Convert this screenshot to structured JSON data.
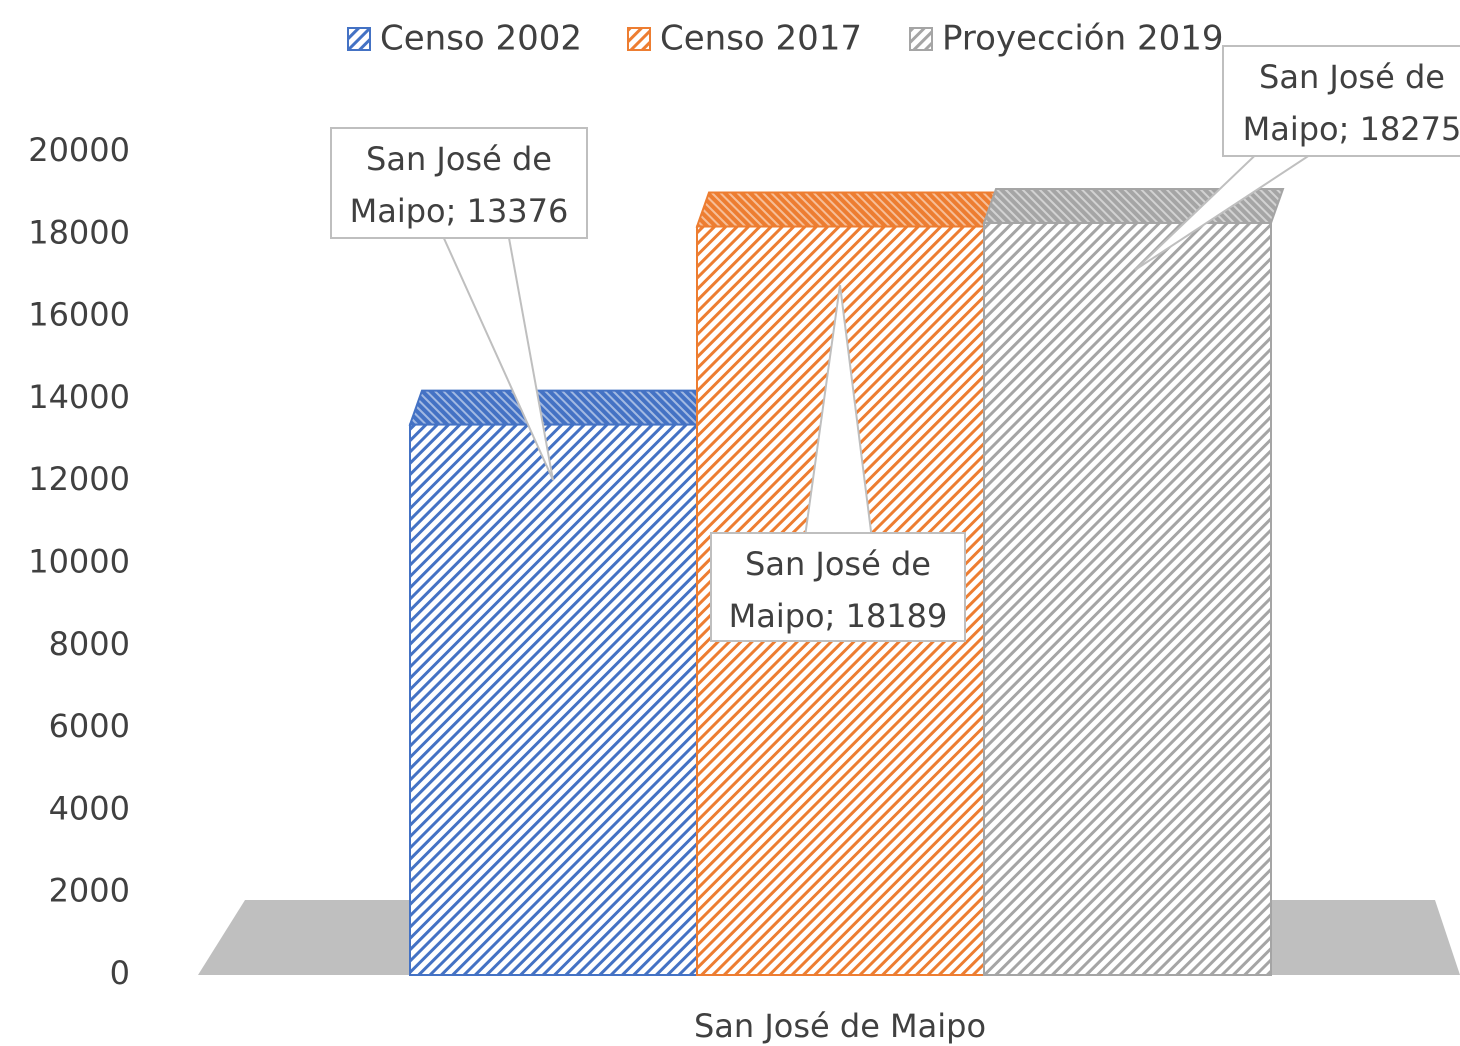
{
  "chart_data": {
    "type": "bar3d",
    "categories": [
      "San José de Maipo"
    ],
    "series": [
      {
        "name": "Censo 2002",
        "color": "#4472c4",
        "values": [
          13376
        ],
        "value_labels": [
          "San José de Maipo; 13376"
        ]
      },
      {
        "name": "Censo 2017",
        "color": "#ed7d31",
        "values": [
          18189
        ],
        "value_labels": [
          "San José de Maipo; 18189"
        ]
      },
      {
        "name": "Proyección 2019",
        "color": "#a5a5a5",
        "values": [
          18275
        ],
        "value_labels": [
          "San José de Maipo; 18275"
        ]
      }
    ],
    "ylim": [
      0,
      20000
    ],
    "yticks": [
      0,
      2000,
      4000,
      6000,
      8000,
      10000,
      12000,
      14000,
      16000,
      18000,
      20000
    ],
    "legend": "top",
    "grid": false
  }
}
